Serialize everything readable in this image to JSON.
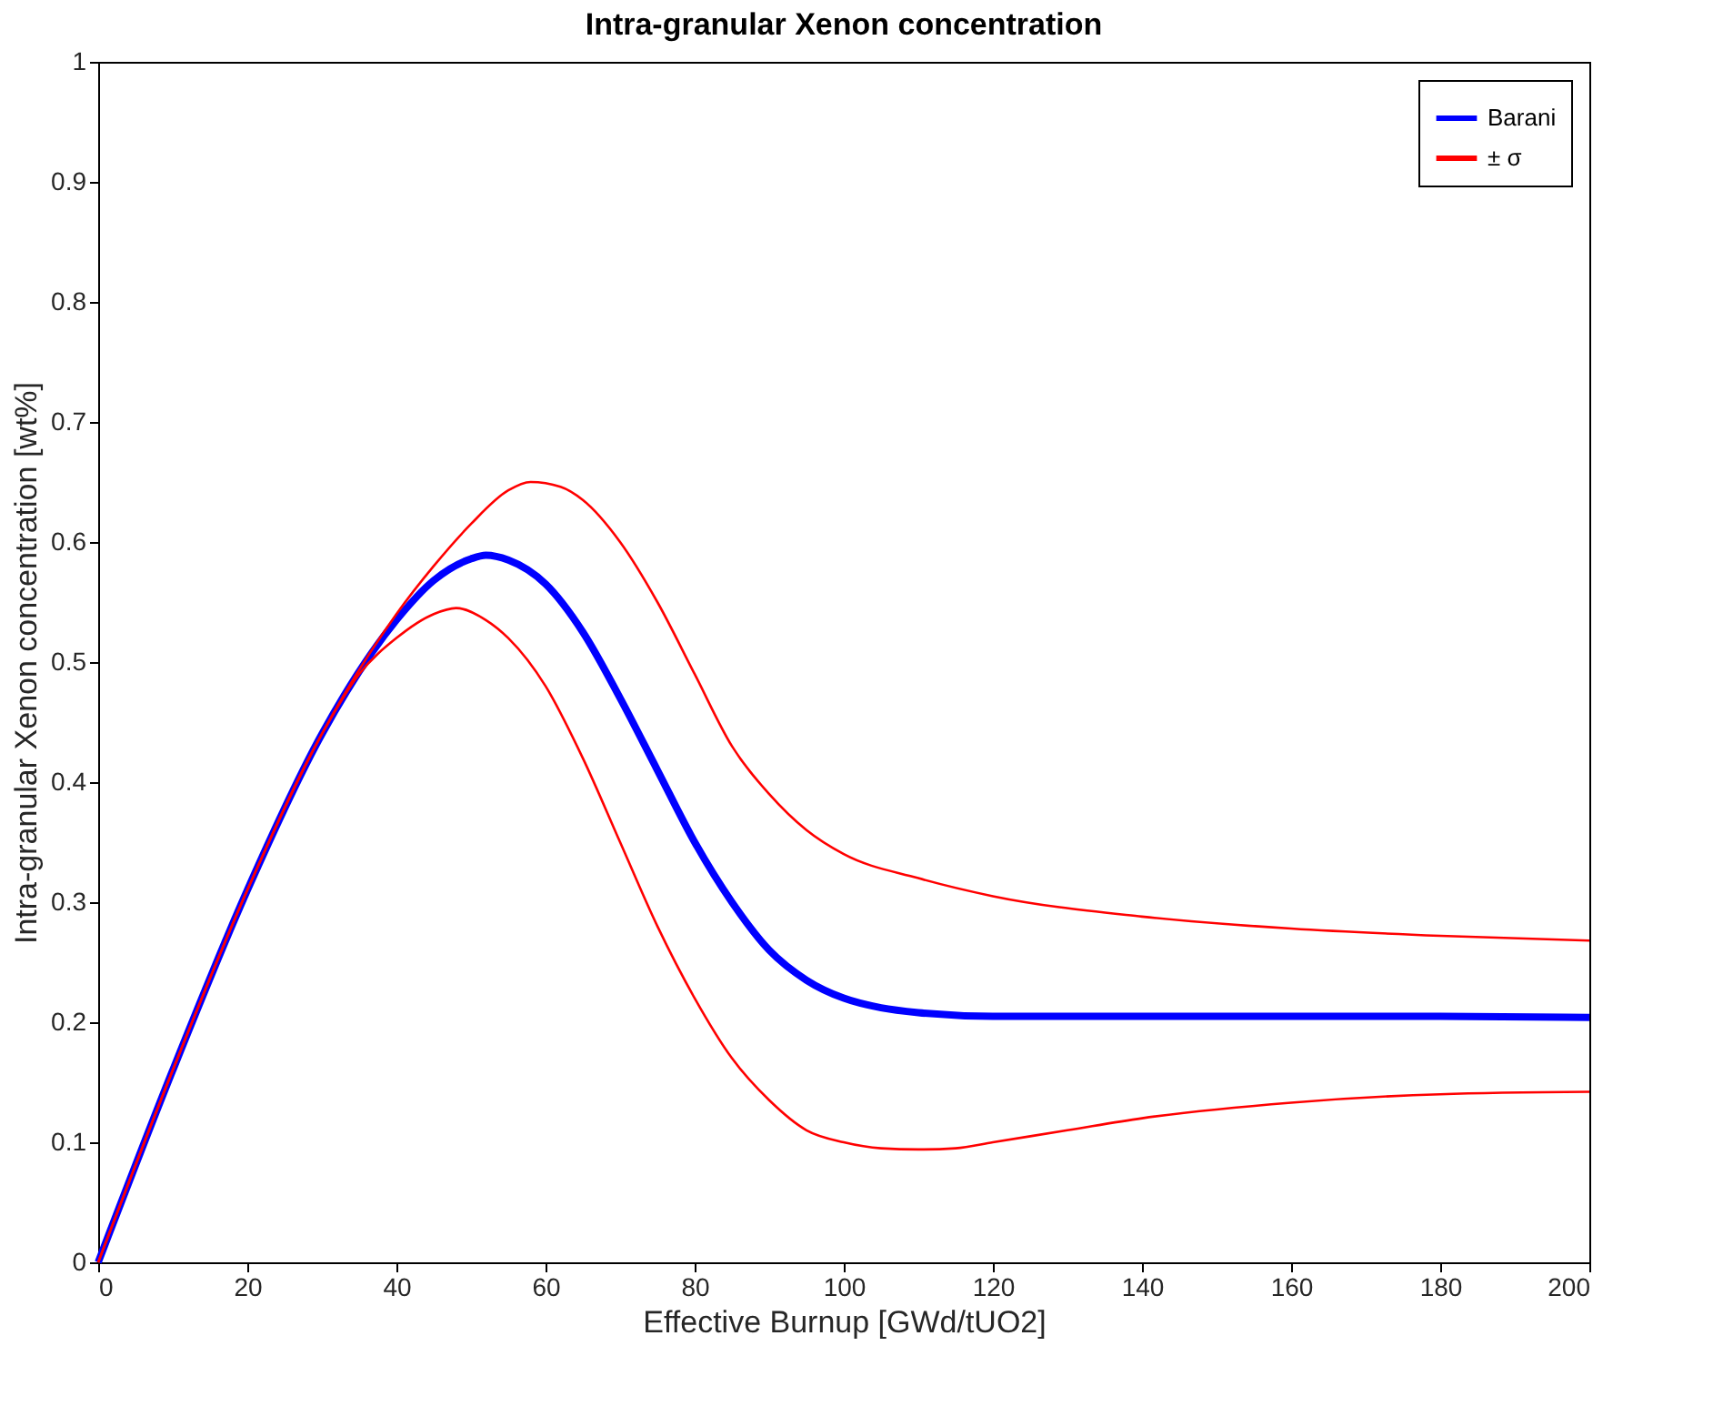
{
  "chart_data": {
    "type": "line",
    "title": "Intra-granular Xenon concentration",
    "xlabel": "Effective Burnup [GWd/tUO2]",
    "ylabel": "Intra-granular Xenon concentration [wt%]",
    "xlim": [
      0,
      200
    ],
    "xticks": [
      0,
      20,
      40,
      60,
      80,
      100,
      120,
      140,
      160,
      180,
      200
    ],
    "ylim": [
      0,
      1
    ],
    "yticks": [
      0,
      0.1,
      0.2,
      0.3,
      0.4,
      0.5,
      0.6,
      0.7,
      0.8,
      0.9,
      1
    ],
    "grid": false,
    "legend": "top right",
    "marker": "none",
    "line_style": "solid",
    "series": [
      {
        "name": "Barani",
        "color": "#0000ff",
        "x": [
          0,
          10,
          20,
          30,
          40,
          45,
          50,
          52,
          55,
          60,
          65,
          70,
          75,
          80,
          85,
          90,
          95,
          100,
          105,
          110,
          120,
          140,
          160,
          180,
          200
        ],
        "values": [
          0,
          0.16,
          0.31,
          0.44,
          0.535,
          0.568,
          0.586,
          0.589,
          0.585,
          0.565,
          0.525,
          0.47,
          0.41,
          0.35,
          0.3,
          0.26,
          0.235,
          0.22,
          0.212,
          0.208,
          0.205,
          0.205,
          0.205,
          0.205,
          0.204
        ]
      },
      {
        "name": "± σ",
        "color": "#ff0000",
        "x": [
          0,
          10,
          20,
          30,
          40,
          45,
          50,
          55,
          58,
          62,
          65,
          70,
          75,
          80,
          85,
          90,
          95,
          100,
          110,
          120,
          140,
          160,
          180,
          200
        ],
        "values": [
          0,
          0.16,
          0.31,
          0.44,
          0.54,
          0.58,
          0.615,
          0.643,
          0.65,
          0.646,
          0.635,
          0.6,
          0.55,
          0.49,
          0.43,
          0.39,
          0.36,
          0.34,
          0.32,
          0.305,
          0.288,
          0.278,
          0.272,
          0.268
        ]
      },
      {
        "color": "#ff0000",
        "x": [
          0,
          10,
          20,
          30,
          35,
          40,
          45,
          48,
          52,
          55,
          60,
          65,
          70,
          75,
          80,
          85,
          90,
          95,
          100,
          105,
          110,
          115,
          120,
          130,
          140,
          160,
          180,
          200
        ],
        "values": [
          0,
          0.16,
          0.31,
          0.44,
          0.49,
          0.52,
          0.54,
          0.545,
          0.535,
          0.52,
          0.48,
          0.42,
          0.35,
          0.28,
          0.22,
          0.17,
          0.135,
          0.11,
          0.1,
          0.095,
          0.094,
          0.095,
          0.1,
          0.11,
          0.12,
          0.133,
          0.14,
          0.142
        ]
      }
    ]
  }
}
